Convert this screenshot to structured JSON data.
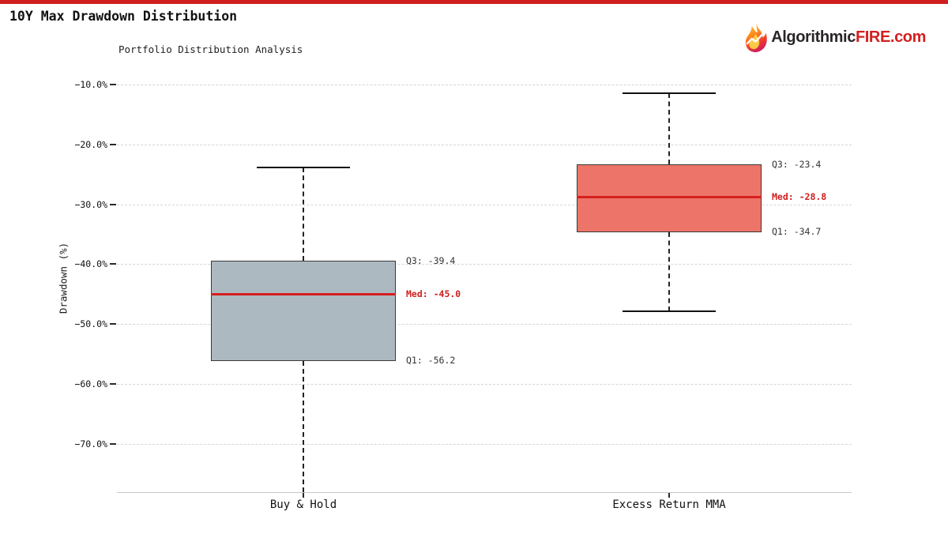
{
  "header": {
    "title": "10Y Max Drawdown Distribution",
    "subtitle": "Portfolio Distribution Analysis"
  },
  "logo": {
    "prefix": "Algorithmic",
    "highlight": "FIRE",
    "suffix": ".com",
    "icon": "flame-chart-icon"
  },
  "colors": {
    "accent_bar": "#cf1f1f",
    "median_line": "#d61f1f",
    "median_label_text": "#cf2020",
    "buy_hold_box_fill": "#adb9c0",
    "excess_mma_box_fill": "#ed7468",
    "box_edge": "#3a3a3a",
    "grid": "#d6d6d6",
    "axis_line": "#c8c8c8",
    "text": "#1a1a1a",
    "logo_dark": "#2a2628",
    "logo_red": "#d31f1f"
  },
  "chart_data": {
    "type": "boxplot",
    "title": "10Y Max Drawdown Distribution",
    "subtitle": "Portfolio Distribution Analysis",
    "ylabel": "Drawdown (%)",
    "xlabel": "",
    "ylim": [
      -78,
      -7.5
    ],
    "grid": "horizontal dashed gridlines on, legend none",
    "y_axis": {
      "ticks": [
        {
          "label": "−10.0%",
          "value": -10
        },
        {
          "label": "−20.0%",
          "value": -20
        },
        {
          "label": "−30.0%",
          "value": -30
        },
        {
          "label": "−40.0%",
          "value": -40
        },
        {
          "label": "−50.0%",
          "value": -50
        },
        {
          "label": "−60.0%",
          "value": -60
        },
        {
          "label": "−70.0%",
          "value": -70
        }
      ]
    },
    "categories": [
      "Buy & Hold",
      "Excess Return MMA"
    ],
    "series": [
      {
        "name": "Buy & Hold",
        "q3": -39.4,
        "median": -45.0,
        "q1": -56.2,
        "whisker_high": -23.9,
        "whisker_low": null,
        "whisker_low_note": "lower whisker extends below visible axis, clipped at ~-78",
        "box_fill": "#adb9c0",
        "labels": {
          "q3": "Q3: -39.4",
          "med": "Med: -45.0",
          "q1": "Q1: -56.2"
        }
      },
      {
        "name": "Excess Return MMA",
        "q3": -23.4,
        "median": -28.8,
        "q1": -34.7,
        "whisker_high": -11.4,
        "whisker_low": -47.9,
        "box_fill": "#ed7468",
        "labels": {
          "q3": "Q3: -23.4",
          "med": "Med: -28.8",
          "q1": "Q1: -34.7"
        }
      }
    ]
  }
}
